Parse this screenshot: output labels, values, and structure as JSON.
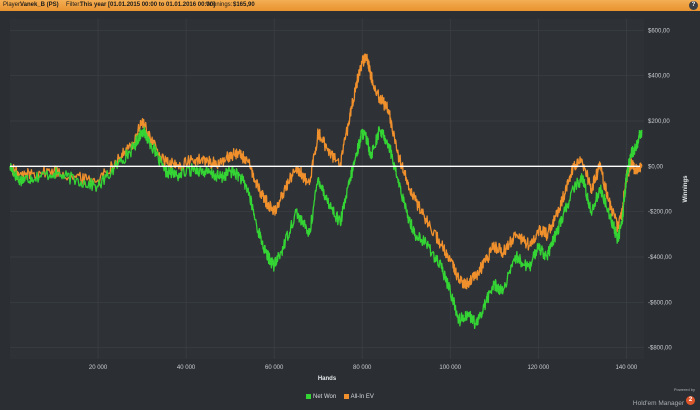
{
  "header": {
    "player_label": "Player:",
    "player_value": "Vanek_B (PS)",
    "filter_label": "Filter:",
    "filter_value": "This year [01.01.2015 00:00 to 01.01.2016 00:00]",
    "winnings_label": "Winnings:",
    "winnings_value": "$165,90",
    "help_icon": "?"
  },
  "colors": {
    "background": "#2b2f33",
    "grid": "#3c4146",
    "net_won": "#35d435",
    "allin_ev": "#f0902d",
    "zero_line": "#ffffff",
    "header": "#f0a040"
  },
  "chart_data": {
    "type": "line",
    "xlabel": "Hands",
    "ylabel": "Winnings",
    "xlim": [
      0,
      144000
    ],
    "ylim": [
      -850,
      650
    ],
    "x_ticks": [
      20000,
      40000,
      60000,
      80000,
      100000,
      120000,
      140000
    ],
    "x_tick_labels": [
      "20 000",
      "40 000",
      "60 000",
      "80 000",
      "100 000",
      "120 000",
      "140 000"
    ],
    "y_ticks": [
      600,
      400,
      200,
      0,
      -200,
      -400,
      -600,
      -800
    ],
    "y_tick_labels": [
      "$600,00",
      "$400,00",
      "$200,00",
      "$0,00",
      "-$200,00",
      "-$400,00",
      "-$600,00",
      "-$800,00"
    ],
    "grid": true,
    "legend": "bottom-center",
    "series": [
      {
        "name": "Net Won",
        "x": [
          0,
          2000,
          5000,
          10000,
          15000,
          20000,
          25000,
          28000,
          30000,
          32000,
          35000,
          38000,
          42000,
          45000,
          48000,
          50000,
          52000,
          54000,
          56000,
          58000,
          60000,
          62000,
          65000,
          68000,
          70000,
          72000,
          75000,
          77000,
          78500,
          80000,
          81000,
          82000,
          84000,
          86000,
          88000,
          90000,
          92000,
          95000,
          98000,
          100000,
          102000,
          104000,
          106000,
          108000,
          110000,
          112000,
          115000,
          118000,
          120000,
          122000,
          124000,
          126000,
          128000,
          130000,
          132000,
          134000,
          136000,
          138000,
          139000,
          140000,
          141000,
          142000,
          143500
        ],
        "y": [
          0,
          -60,
          -50,
          -30,
          -60,
          -90,
          20,
          80,
          160,
          100,
          -20,
          -40,
          -10,
          -30,
          -50,
          -20,
          -40,
          -100,
          -260,
          -380,
          -440,
          -360,
          -200,
          -300,
          -50,
          -150,
          -250,
          -80,
          40,
          150,
          120,
          50,
          160,
          100,
          -50,
          -200,
          -300,
          -350,
          -450,
          -550,
          -680,
          -650,
          -700,
          -600,
          -520,
          -550,
          -400,
          -450,
          -350,
          -400,
          -300,
          -200,
          -100,
          -50,
          -200,
          -100,
          -200,
          -320,
          -250,
          -50,
          50,
          80,
          160
        ]
      },
      {
        "name": "All-In EV",
        "x": [
          0,
          2000,
          5000,
          10000,
          15000,
          20000,
          25000,
          28000,
          30000,
          32000,
          35000,
          38000,
          42000,
          45000,
          48000,
          50000,
          52000,
          54000,
          56000,
          58000,
          60000,
          62000,
          65000,
          68000,
          70000,
          72000,
          75000,
          77000,
          78500,
          80000,
          81000,
          82000,
          84000,
          86000,
          88000,
          90000,
          92000,
          95000,
          98000,
          100000,
          102000,
          104000,
          106000,
          108000,
          110000,
          112000,
          115000,
          118000,
          120000,
          122000,
          124000,
          126000,
          128000,
          130000,
          132000,
          134000,
          136000,
          138000,
          139000,
          140000,
          141000,
          142000,
          143500
        ],
        "y": [
          0,
          -40,
          -30,
          -20,
          -50,
          -60,
          40,
          100,
          200,
          120,
          20,
          0,
          30,
          20,
          10,
          50,
          60,
          20,
          -80,
          -150,
          -200,
          -120,
          0,
          -80,
          150,
          80,
          0,
          200,
          350,
          460,
          490,
          400,
          300,
          250,
          60,
          -50,
          -150,
          -250,
          -350,
          -420,
          -500,
          -520,
          -480,
          -420,
          -350,
          -380,
          -300,
          -350,
          -280,
          -300,
          -220,
          -120,
          0,
          20,
          -100,
          0,
          -150,
          -270,
          -200,
          -50,
          10,
          -10,
          0
        ]
      }
    ]
  },
  "legend": {
    "net_won_label": "Net Won",
    "allin_ev_label": "All-In EV"
  },
  "branding": {
    "powered_by": "Powered by",
    "name": "Hold'em Manager",
    "badge": "2"
  }
}
